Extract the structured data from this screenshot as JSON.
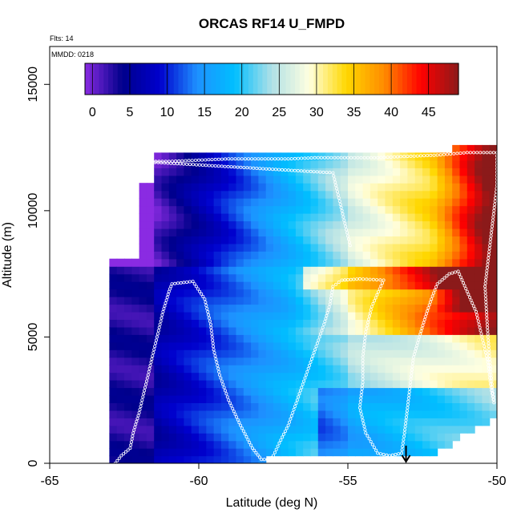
{
  "chart_data": {
    "type": "heatmap",
    "title": "ORCAS RF14 U_FMPD",
    "annotations": [
      "Flts: 14",
      "MMDD: 0218"
    ],
    "xlabel": "Latitude (deg N)",
    "ylabel": "Altitude (m)",
    "xlim": [
      -65,
      -50
    ],
    "ylim": [
      0,
      16500
    ],
    "x_ticks": [
      -65,
      -60,
      -55,
      -50
    ],
    "y_ticks": [
      0,
      5000,
      10000,
      15000
    ],
    "colorbar": {
      "ticks": [
        0,
        5,
        10,
        15,
        20,
        25,
        30,
        35,
        40,
        45
      ],
      "range": [
        -1,
        49
      ],
      "colors": [
        "#8a2be2",
        "#00008b",
        "#0000cd",
        "#1e90ff",
        "#00bfff",
        "#b0e0e6",
        "#ffffe0",
        "#ffd700",
        "#ff8c00",
        "#ff0000",
        "#8b1a1a"
      ]
    },
    "marker": {
      "x": -53.05,
      "note": "arrow at surface"
    },
    "flight_track": [
      [
        -62.8,
        0
      ],
      [
        -62.6,
        300
      ],
      [
        -62.3,
        600
      ],
      [
        -62.2,
        1200
      ],
      [
        -62.0,
        2000
      ],
      [
        -61.8,
        3000
      ],
      [
        -61.6,
        4000
      ],
      [
        -61.4,
        5000
      ],
      [
        -61.2,
        6000
      ],
      [
        -61.0,
        6800
      ],
      [
        -60.9,
        7100
      ],
      [
        -60.2,
        7200
      ],
      [
        -59.8,
        6500
      ],
      [
        -59.6,
        5500
      ],
      [
        -59.5,
        4500
      ],
      [
        -59.3,
        3500
      ],
      [
        -59.0,
        2500
      ],
      [
        -58.6,
        1500
      ],
      [
        -58.2,
        600
      ],
      [
        -57.9,
        150
      ],
      [
        -57.6,
        150
      ],
      [
        -57.5,
        300
      ],
      [
        -57.3,
        800
      ],
      [
        -57.0,
        1500
      ],
      [
        -56.7,
        2500
      ],
      [
        -56.4,
        3500
      ],
      [
        -56.1,
        4500
      ],
      [
        -55.8,
        5500
      ],
      [
        -55.6,
        6300
      ],
      [
        -55.5,
        7000
      ],
      [
        -55.2,
        7250
      ],
      [
        -54.6,
        7300
      ],
      [
        -53.8,
        7250
      ],
      [
        -54.2,
        6200
      ],
      [
        -54.4,
        5200
      ],
      [
        -54.5,
        4200
      ],
      [
        -54.5,
        3200
      ],
      [
        -54.6,
        2200
      ],
      [
        -54.4,
        1200
      ],
      [
        -54.0,
        400
      ],
      [
        -53.6,
        300
      ],
      [
        -53.2,
        400
      ],
      [
        -53.1,
        1200
      ],
      [
        -53.0,
        2200
      ],
      [
        -52.9,
        3200
      ],
      [
        -52.8,
        4200
      ],
      [
        -52.6,
        5000
      ],
      [
        -52.4,
        5800
      ],
      [
        -52.2,
        6500
      ],
      [
        -52.0,
        7100
      ],
      [
        -51.6,
        7500
      ],
      [
        -51.3,
        7600
      ],
      [
        -51.0,
        6800
      ],
      [
        -50.7,
        6000
      ],
      [
        -50.5,
        5000
      ],
      [
        -50.3,
        4000
      ],
      [
        -50.2,
        3000
      ],
      [
        -50.1,
        2400
      ],
      [
        -50.2,
        3500
      ],
      [
        -50.3,
        5000
      ],
      [
        -50.4,
        7000
      ],
      [
        -50.2,
        9000
      ],
      [
        -50.0,
        11000
      ],
      [
        -50.0,
        12300
      ],
      [
        -51.0,
        12300
      ],
      [
        -52.0,
        12200
      ],
      [
        -53.0,
        12150
      ],
      [
        -54.0,
        12100
      ],
      [
        -55.0,
        12100
      ],
      [
        -56.0,
        12100
      ],
      [
        -57.0,
        12050
      ],
      [
        -58.0,
        12050
      ],
      [
        -59.0,
        12050
      ],
      [
        -60.0,
        12000
      ],
      [
        -61.0,
        11950
      ],
      [
        -62.0,
        11950
      ],
      [
        -55.5,
        11500
      ],
      [
        -55.3,
        10500
      ],
      [
        -55.1,
        9500
      ],
      [
        -54.9,
        8500
      ]
    ]
  }
}
